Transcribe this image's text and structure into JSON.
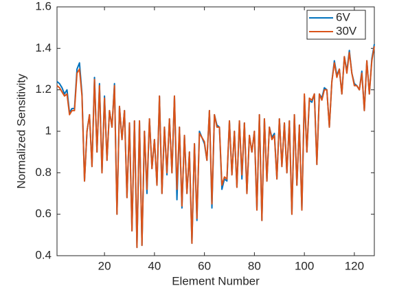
{
  "chart_data": {
    "type": "line",
    "x_label": "Element Number",
    "y_label": "Normalized Sensitivity",
    "x": [
      1,
      2,
      3,
      4,
      5,
      6,
      7,
      8,
      9,
      10,
      11,
      12,
      13,
      14,
      15,
      16,
      17,
      18,
      19,
      20,
      21,
      22,
      23,
      24,
      25,
      26,
      27,
      28,
      29,
      30,
      31,
      32,
      33,
      34,
      35,
      36,
      37,
      38,
      39,
      40,
      41,
      42,
      43,
      44,
      45,
      46,
      47,
      48,
      49,
      50,
      51,
      52,
      53,
      54,
      55,
      56,
      57,
      58,
      59,
      60,
      61,
      62,
      63,
      64,
      65,
      66,
      67,
      68,
      69,
      70,
      71,
      72,
      73,
      74,
      75,
      76,
      77,
      78,
      79,
      80,
      81,
      82,
      83,
      84,
      85,
      86,
      87,
      88,
      89,
      90,
      91,
      92,
      93,
      94,
      95,
      96,
      97,
      98,
      99,
      100,
      101,
      102,
      103,
      104,
      105,
      106,
      107,
      108,
      109,
      110,
      111,
      112,
      113,
      114,
      115,
      116,
      117,
      118,
      119,
      120,
      121,
      122,
      123,
      124,
      125,
      126,
      127,
      128
    ],
    "series": [
      {
        "name": "6V",
        "color": "#0072bd",
        "values": [
          1.24,
          1.23,
          1.21,
          1.18,
          1.2,
          1.09,
          1.11,
          1.11,
          1.3,
          1.33,
          1.18,
          0.76,
          1.0,
          1.08,
          0.83,
          1.26,
          0.9,
          1.23,
          0.8,
          1.17,
          0.86,
          1.1,
          1.02,
          1.23,
          0.6,
          1.12,
          0.96,
          1.1,
          0.68,
          1.04,
          0.52,
          1.05,
          0.44,
          1.05,
          0.45,
          1.0,
          0.7,
          1.06,
          0.82,
          0.96,
          0.74,
          1.17,
          0.7,
          1.02,
          0.79,
          1.06,
          0.8,
          1.17,
          0.67,
          1.02,
          0.63,
          0.98,
          0.7,
          0.9,
          0.46,
          0.94,
          0.57,
          1.0,
          0.97,
          0.94,
          0.86,
          1.1,
          0.63,
          1.08,
          1.03,
          1.02,
          0.72,
          0.77,
          0.76,
          1.05,
          0.79,
          1.0,
          0.73,
          1.05,
          0.77,
          1.04,
          0.7,
          0.98,
          0.9,
          1.0,
          0.62,
          1.08,
          0.57,
          1.06,
          0.76,
          1.02,
          0.97,
          0.99,
          0.77,
          1.06,
          0.83,
          1.04,
          0.8,
          1.05,
          0.6,
          1.08,
          0.74,
          1.03,
          0.62,
          1.17,
          0.9,
          1.15,
          1.14,
          1.18,
          0.84,
          1.18,
          1.16,
          1.21,
          1.2,
          1.02,
          1.24,
          1.34,
          1.27,
          1.3,
          1.18,
          1.36,
          1.29,
          1.39,
          1.28,
          1.23,
          1.22,
          1.2,
          1.29,
          1.1,
          1.34,
          1.18,
          1.35,
          1.42
        ]
      },
      {
        "name": "30V",
        "color": "#d95319",
        "values": [
          1.22,
          1.21,
          1.19,
          1.17,
          1.18,
          1.08,
          1.1,
          1.1,
          1.28,
          1.3,
          1.17,
          0.76,
          1.0,
          1.08,
          0.83,
          1.25,
          0.9,
          1.22,
          0.8,
          1.16,
          0.86,
          1.1,
          1.02,
          1.22,
          0.6,
          1.12,
          0.96,
          1.1,
          0.68,
          1.04,
          0.52,
          1.05,
          0.44,
          1.05,
          0.45,
          1.0,
          0.72,
          1.06,
          0.82,
          0.96,
          0.74,
          1.17,
          0.7,
          1.02,
          0.8,
          1.06,
          0.8,
          1.17,
          0.72,
          1.02,
          0.64,
          0.98,
          0.7,
          0.9,
          0.46,
          0.94,
          0.58,
          0.99,
          0.97,
          0.95,
          0.86,
          1.1,
          0.65,
          1.08,
          1.02,
          1.02,
          0.74,
          0.78,
          0.77,
          1.05,
          0.79,
          1.0,
          0.73,
          1.05,
          0.79,
          1.04,
          0.7,
          0.98,
          0.9,
          1.0,
          0.62,
          1.08,
          0.57,
          1.06,
          0.76,
          1.02,
          0.96,
          0.98,
          0.77,
          1.06,
          0.83,
          1.04,
          0.8,
          1.05,
          0.6,
          1.08,
          0.74,
          1.03,
          0.62,
          1.18,
          0.9,
          1.16,
          1.15,
          1.18,
          0.84,
          1.18,
          1.15,
          1.2,
          1.2,
          1.02,
          1.24,
          1.33,
          1.26,
          1.3,
          1.18,
          1.36,
          1.28,
          1.38,
          1.28,
          1.22,
          1.22,
          1.2,
          1.28,
          1.1,
          1.34,
          1.18,
          1.34,
          1.41
        ]
      }
    ],
    "xlim": [
      1,
      128
    ],
    "xticks": [
      20,
      40,
      60,
      80,
      100,
      120
    ],
    "ylim": [
      0.4,
      1.6
    ],
    "yticks": [
      0.4,
      0.6,
      0.8,
      1,
      1.2,
      1.4,
      1.6
    ],
    "grid": false,
    "legend": "upper right"
  }
}
